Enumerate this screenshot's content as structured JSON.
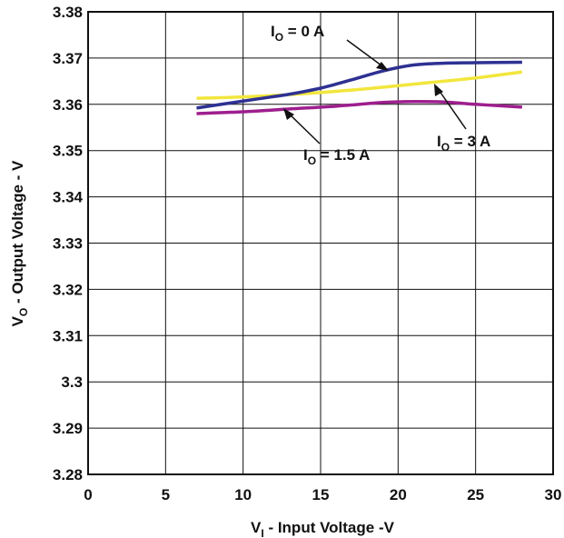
{
  "chart_data": {
    "type": "line",
    "xlabel": {
      "main": "V",
      "sub": "I",
      "rest": " - Input Voltage -V"
    },
    "ylabel": {
      "main": "V",
      "sub": "O",
      "rest": " - Output Voltage - V"
    },
    "xlim": [
      0,
      30
    ],
    "ylim": [
      3.28,
      3.38
    ],
    "grid": true,
    "x_ticks": [
      "0",
      "5",
      "10",
      "15",
      "20",
      "25",
      "30"
    ],
    "y_ticks": [
      "3.28",
      "3.29",
      "3.3",
      "3.31",
      "3.32",
      "3.33",
      "3.34",
      "3.35",
      "3.36",
      "3.37",
      "3.38"
    ],
    "series": [
      {
        "name": "I_O = 0 A",
        "label": {
          "main": "I",
          "sub": "O",
          "rest": " = 0 A"
        },
        "color": "#2e3192",
        "x": [
          7,
          9,
          11,
          13,
          15,
          17,
          19,
          21,
          23,
          25,
          28
        ],
        "y": [
          3.3592,
          3.3602,
          3.3612,
          3.3622,
          3.3635,
          3.3653,
          3.3672,
          3.3685,
          3.3689,
          3.369,
          3.3691
        ]
      },
      {
        "name": "I_O = 1.5 A",
        "label": {
          "main": "I",
          "sub": "O",
          "rest": " = 1.5 A"
        },
        "color": "#9e1f8e",
        "x": [
          7,
          10,
          13,
          16,
          19,
          21,
          23,
          25,
          28
        ],
        "y": [
          3.358,
          3.3584,
          3.359,
          3.3596,
          3.3604,
          3.3606,
          3.3605,
          3.36,
          3.3594
        ]
      },
      {
        "name": "I_O = 3 A",
        "label": {
          "main": "I",
          "sub": "O",
          "rest": " = 3 A"
        },
        "color": "#f2e63d",
        "x": [
          7,
          10,
          13,
          16,
          19,
          22,
          25,
          28
        ],
        "y": [
          3.3613,
          3.3616,
          3.3621,
          3.3628,
          3.3637,
          3.3647,
          3.3657,
          3.367
        ]
      }
    ]
  }
}
